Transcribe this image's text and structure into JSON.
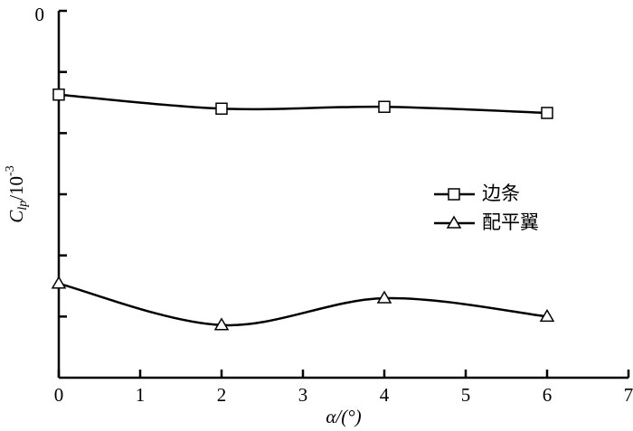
{
  "chart_data": {
    "type": "line",
    "x_label": "α/(°)",
    "y_label": {
      "base": "C",
      "sub": "lp",
      "rest": "/10",
      "sup": "-3"
    },
    "xlim": [
      0,
      7
    ],
    "xticks": [
      0,
      1,
      2,
      3,
      4,
      5,
      6,
      7
    ],
    "ylim": [
      -6,
      0
    ],
    "yticks": [
      0,
      {
        "value": -1,
        "label": null
      },
      {
        "value": -2,
        "label": null
      },
      {
        "value": -3,
        "label": null
      },
      {
        "value": -4,
        "label": null
      },
      {
        "value": -5,
        "label": null
      }
    ],
    "x": [
      0,
      2,
      4,
      6
    ],
    "series": [
      {
        "name": "边条",
        "color": "#000000",
        "marker": "square",
        "values": [
          -1.37,
          -1.6,
          -1.57,
          -1.67
        ]
      },
      {
        "name": "配平翼",
        "color": "#000000",
        "marker": "triangle",
        "values": [
          -4.46,
          -5.14,
          -4.7,
          -5.0
        ]
      }
    ],
    "legend": "right"
  }
}
